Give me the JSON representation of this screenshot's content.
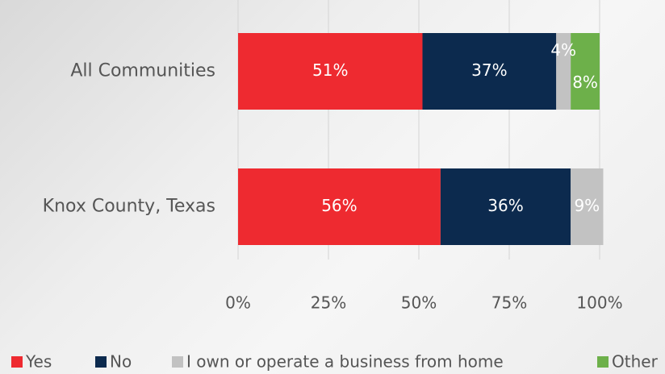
{
  "chart_data": {
    "type": "stacked_bar_horizontal",
    "categories": [
      "All Communities",
      "Knox County, Texas"
    ],
    "series": [
      {
        "name": "Yes",
        "color": "#ee2a30",
        "values": [
          51,
          56
        ],
        "value_labels": [
          "51%",
          "56%"
        ]
      },
      {
        "name": "No",
        "color": "#0c2a4e",
        "values": [
          37,
          36
        ],
        "value_labels": [
          "37%",
          "36%"
        ]
      },
      {
        "name": "I own or operate a business from home",
        "color": "#c2c2c2",
        "values": [
          4,
          9
        ],
        "value_labels": [
          "4%",
          "9%"
        ]
      },
      {
        "name": "Other",
        "color": "#6db04a",
        "values": [
          8,
          null
        ],
        "value_labels": [
          "8%",
          null
        ]
      }
    ],
    "xlim": [
      0,
      100
    ],
    "xticks": [
      {
        "value": 0,
        "label": "0%"
      },
      {
        "value": 25,
        "label": "25%"
      },
      {
        "value": 50,
        "label": "50%"
      },
      {
        "value": 75,
        "label": "75%"
      },
      {
        "value": 100,
        "label": "100%"
      }
    ],
    "grid": true,
    "legend": "bottom"
  }
}
